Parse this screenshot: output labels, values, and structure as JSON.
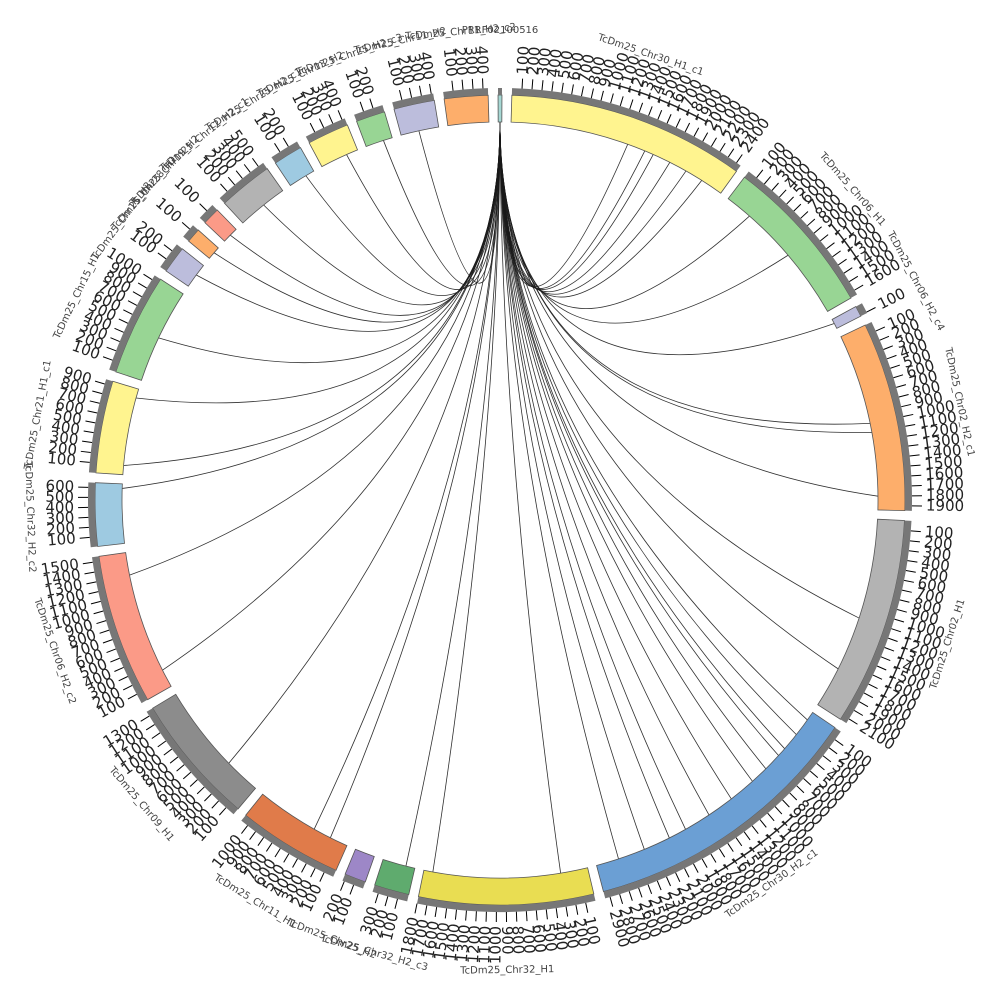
{
  "chart_data": {
    "type": "chord",
    "link_color": "#1a1a1a",
    "segments": [
      {
        "name": "PRRF02100516",
        "color": "#a6d8d4",
        "length": 40,
        "ticks": []
      },
      {
        "name": "TcDm25_Chr30_H1_c1",
        "color": "#fff48f",
        "length": 2450,
        "ticks": [
          100,
          200,
          300,
          400,
          500,
          600,
          700,
          800,
          900,
          1000,
          1100,
          1200,
          1300,
          1400,
          1500,
          1600,
          1700,
          1800,
          1900,
          2000,
          2100,
          2200,
          2300,
          2400
        ]
      },
      {
        "name": "TcDm25_Chr06_H1",
        "color": "#98d594",
        "length": 1650,
        "ticks": [
          100,
          200,
          300,
          400,
          500,
          600,
          700,
          800,
          900,
          1000,
          1100,
          1200,
          1300,
          1400,
          1500,
          1600
        ]
      },
      {
        "name": "TcDm25_Chr06_H2_c4",
        "color": "#bcbddc",
        "length": 110,
        "ticks": [
          100
        ]
      },
      {
        "name": "TcDm25_Chr02_H2_c1",
        "color": "#fdae6b",
        "length": 1950,
        "ticks": [
          100,
          200,
          300,
          400,
          500,
          600,
          700,
          800,
          900,
          1000,
          1100,
          1200,
          1300,
          1400,
          1500,
          1600,
          1700,
          1800,
          1900
        ]
      },
      {
        "name": "TcDm25_Chr02_H1",
        "color": "#b3b3b3",
        "length": 2150,
        "ticks": [
          100,
          200,
          300,
          400,
          500,
          600,
          700,
          800,
          900,
          1000,
          1100,
          1200,
          1300,
          1400,
          1500,
          1600,
          1700,
          1800,
          1900,
          2000,
          2100
        ]
      },
      {
        "name": "TcDm25_Chr30_H2_c1",
        "color": "#6b9fd4",
        "length": 2950,
        "ticks": [
          100,
          200,
          300,
          400,
          500,
          600,
          700,
          800,
          900,
          1000,
          1100,
          1200,
          1300,
          1400,
          1500,
          1600,
          1700,
          1800,
          1900,
          2000,
          2100,
          2200,
          2300,
          2400,
          2500,
          2600,
          2700,
          2800,
          2900
        ]
      },
      {
        "name": "TcDm25_Chr32_H1",
        "color": "#e9dd52",
        "length": 1800,
        "ticks": [
          100,
          200,
          300,
          400,
          500,
          600,
          700,
          800,
          900,
          1000,
          1100,
          1200,
          1300,
          1400,
          1500,
          1600,
          1700,
          1800
        ]
      },
      {
        "name": "TcDm25_Chr32_H2_c3",
        "color": "#5fab6e",
        "length": 360,
        "ticks": [
          100,
          200,
          300
        ]
      },
      {
        "name": "TcDm25_Chr25_H2",
        "color": "#9d87c7",
        "length": 220,
        "ticks": [
          100,
          200
        ]
      },
      {
        "name": "TcDm25_Chr11_H1",
        "color": "#e07b4a",
        "length": 1080,
        "ticks": [
          100,
          200,
          300,
          400,
          500,
          600,
          700,
          800,
          900,
          1000
        ]
      },
      {
        "name": "TcDm25_Chr09_H1",
        "color": "#8c8c8c",
        "length": 1350,
        "ticks": [
          100,
          200,
          300,
          400,
          500,
          600,
          700,
          800,
          900,
          1000,
          1100,
          1200,
          1300
        ]
      },
      {
        "name": "TcDm25_Chr06_H2_c2",
        "color": "#fb9a87",
        "length": 1550,
        "ticks": [
          100,
          200,
          300,
          400,
          500,
          600,
          700,
          800,
          900,
          1000,
          1100,
          1200,
          1300,
          1400,
          1500
        ]
      },
      {
        "name": "TcDm25_Chr32_H2_c2",
        "color": "#9ecae1",
        "length": 650,
        "ticks": [
          100,
          200,
          300,
          400,
          500,
          600
        ]
      },
      {
        "name": "TcDm25_Chr21_H1_c1",
        "color": "#fff48f",
        "length": 950,
        "ticks": [
          100,
          200,
          300,
          400,
          500,
          600,
          700,
          800,
          900
        ]
      },
      {
        "name": "TcDm25_Chr15_H1",
        "color": "#98d594",
        "length": 1050,
        "ticks": [
          100,
          200,
          300,
          400,
          500,
          600,
          700,
          800,
          900,
          1000
        ]
      },
      {
        "name": "TcDm25_Chr15_H2",
        "color": "#bcbddc",
        "length": 280,
        "ticks": [
          100,
          200
        ]
      },
      {
        "name": "TcDm25_Chr28_H1",
        "color": "#fdae6b",
        "length": 150,
        "ticks": [
          100
        ]
      },
      {
        "name": "TcDm25_Chr19_H2",
        "color": "#fb9a87",
        "length": 180,
        "ticks": [
          100
        ]
      },
      {
        "name": "TcDm25_Chr12_H2_c1",
        "color": "#b3b3b3",
        "length": 560,
        "ticks": [
          100,
          200,
          300,
          400,
          500
        ]
      },
      {
        "name": "TcDm25_Chr25_H2_c1",
        "color": "#9ecae1",
        "length": 300,
        "ticks": [
          100,
          200
        ]
      },
      {
        "name": "TcDm25_Chr13_H2",
        "color": "#fff48f",
        "length": 430,
        "ticks": [
          100,
          200,
          300,
          400
        ]
      },
      {
        "name": "TcDm25_Chr25_H2_c3",
        "color": "#98d594",
        "length": 300,
        "ticks": [
          100,
          200
        ]
      },
      {
        "name": "TcDm25_Chr11_H2",
        "color": "#bcbddc",
        "length": 420,
        "ticks": [
          100,
          200,
          300,
          400
        ]
      },
      {
        "name": "TcDm25_Chr11_H2_c2",
        "color": "#fdae6b",
        "length": 450,
        "ticks": [
          100,
          200,
          300,
          400
        ]
      }
    ],
    "links": [
      {
        "target": 1,
        "position": 1300
      },
      {
        "target": 1,
        "position": 1500
      },
      {
        "target": 1,
        "position": 1600
      },
      {
        "target": 1,
        "position": 1800
      },
      {
        "target": 1,
        "position": 2000
      },
      {
        "target": 1,
        "position": 2200
      },
      {
        "target": 2,
        "position": 300
      },
      {
        "target": 2,
        "position": 900
      },
      {
        "target": 3,
        "position": 50
      },
      {
        "target": 4,
        "position": 1000
      },
      {
        "target": 4,
        "position": 1100
      },
      {
        "target": 4,
        "position": 1800
      },
      {
        "target": 5,
        "position": 1100
      },
      {
        "target": 5,
        "position": 1700
      },
      {
        "target": 6,
        "position": 100
      },
      {
        "target": 6,
        "position": 300
      },
      {
        "target": 6,
        "position": 500
      },
      {
        "target": 6,
        "position": 600
      },
      {
        "target": 6,
        "position": 800
      },
      {
        "target": 6,
        "position": 1000
      },
      {
        "target": 6,
        "position": 1300
      },
      {
        "target": 6,
        "position": 1600
      },
      {
        "target": 6,
        "position": 1900
      },
      {
        "target": 6,
        "position": 2100
      },
      {
        "target": 6,
        "position": 2400
      },
      {
        "target": 6,
        "position": 2700
      },
      {
        "target": 7,
        "position": 300
      },
      {
        "target": 7,
        "position": 1700
      },
      {
        "target": 8,
        "position": 100
      },
      {
        "target": 10,
        "position": 200
      },
      {
        "target": 10,
        "position": 400
      },
      {
        "target": 11,
        "position": 400
      },
      {
        "target": 12,
        "position": 200
      },
      {
        "target": 12,
        "position": 1300
      },
      {
        "target": 13,
        "position": 600
      },
      {
        "target": 14,
        "position": 100
      },
      {
        "target": 14,
        "position": 850
      },
      {
        "target": 15,
        "position": 500
      },
      {
        "target": 16,
        "position": 150
      },
      {
        "target": 17,
        "position": 80
      },
      {
        "target": 18,
        "position": 90
      },
      {
        "target": 19,
        "position": 300
      },
      {
        "target": 20,
        "position": 200
      },
      {
        "target": 21,
        "position": 300
      },
      {
        "target": 22,
        "position": 200
      },
      {
        "target": 23,
        "position": 200
      }
    ]
  }
}
